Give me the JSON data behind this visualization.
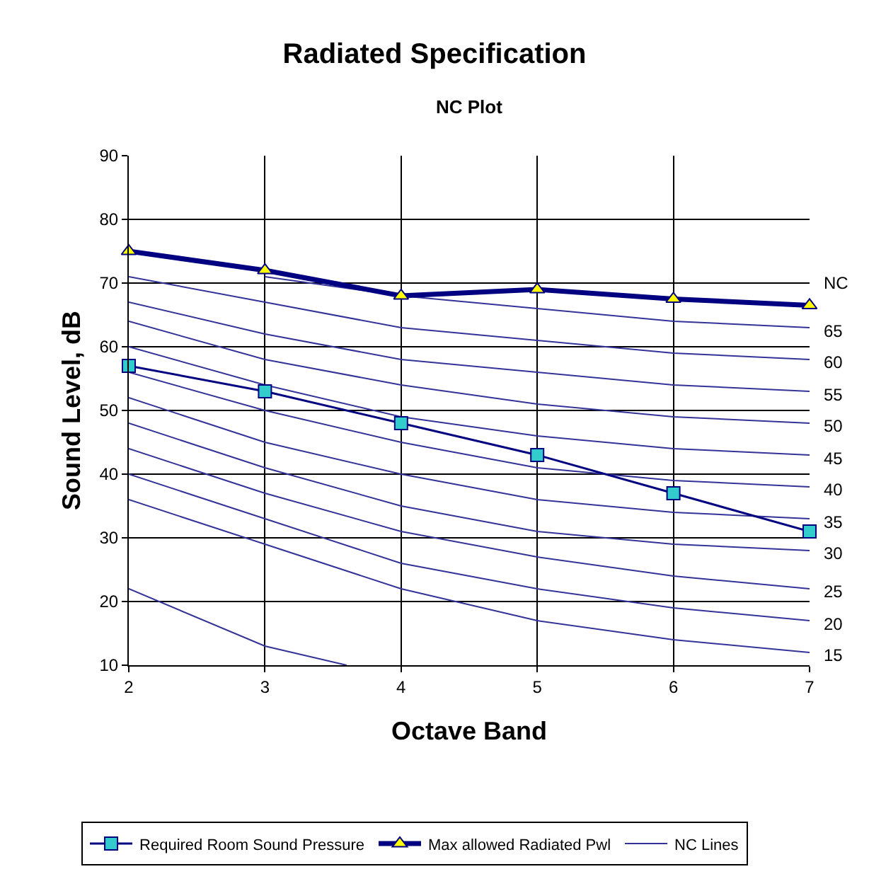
{
  "chart_data": {
    "type": "line",
    "title": "Radiated Specification",
    "subtitle": "NC Plot",
    "xlabel": "Octave Band",
    "ylabel": "Sound Level, dB",
    "x": [
      2,
      3,
      4,
      5,
      6,
      7
    ],
    "xlim": [
      2,
      7
    ],
    "xticks": [
      2,
      3,
      4,
      5,
      6,
      7
    ],
    "ylim": [
      10,
      90
    ],
    "yticks": [
      10,
      20,
      30,
      40,
      50,
      60,
      70,
      80,
      90
    ],
    "grid": true,
    "legend": "bottom",
    "series": [
      {
        "name": "Required Room Sound Pressure",
        "color": "#33cccc",
        "marker": "square",
        "values": [
          57,
          53,
          48,
          43,
          37,
          31
        ]
      },
      {
        "name": "Max allowed Radiated Pwl",
        "color": "#ffff00",
        "marker": "triangle",
        "values": [
          75,
          72,
          68,
          69,
          67.5,
          66.5
        ]
      },
      {
        "name": "NC Lines",
        "color": "#333399",
        "values": [
          null,
          71,
          68,
          66,
          64,
          63
        ]
      },
      {
        "color": "#333399",
        "values": [
          71,
          67,
          63,
          61,
          59,
          58
        ]
      },
      {
        "color": "#333399",
        "values": [
          67,
          62,
          58,
          56,
          54,
          53
        ]
      },
      {
        "color": "#333399",
        "values": [
          64,
          58,
          54,
          51,
          49,
          48
        ]
      },
      {
        "color": "#333399",
        "values": [
          60,
          54,
          49,
          46,
          44,
          43
        ]
      },
      {
        "color": "#333399",
        "values": [
          56,
          50,
          45,
          41,
          39,
          38
        ]
      },
      {
        "color": "#333399",
        "values": [
          52,
          45,
          40,
          36,
          34,
          33
        ]
      },
      {
        "color": "#333399",
        "values": [
          48,
          41,
          35,
          31,
          29,
          28
        ]
      },
      {
        "color": "#333399",
        "values": [
          44,
          37,
          31,
          27,
          24,
          22
        ]
      },
      {
        "color": "#333399",
        "values": [
          40,
          33,
          26,
          22,
          19,
          17
        ]
      },
      {
        "color": "#333399",
        "values": [
          36,
          29,
          22,
          17,
          14,
          12
        ]
      },
      {
        "color": "#333399",
        "x": [
          2,
          3,
          3.6
        ],
        "values": [
          22,
          13,
          10
        ]
      }
    ],
    "annotations": [
      "NC",
      "65",
      "60",
      "55",
      "50",
      "45",
      "40",
      "35",
      "30",
      "25",
      "20",
      "15"
    ]
  }
}
